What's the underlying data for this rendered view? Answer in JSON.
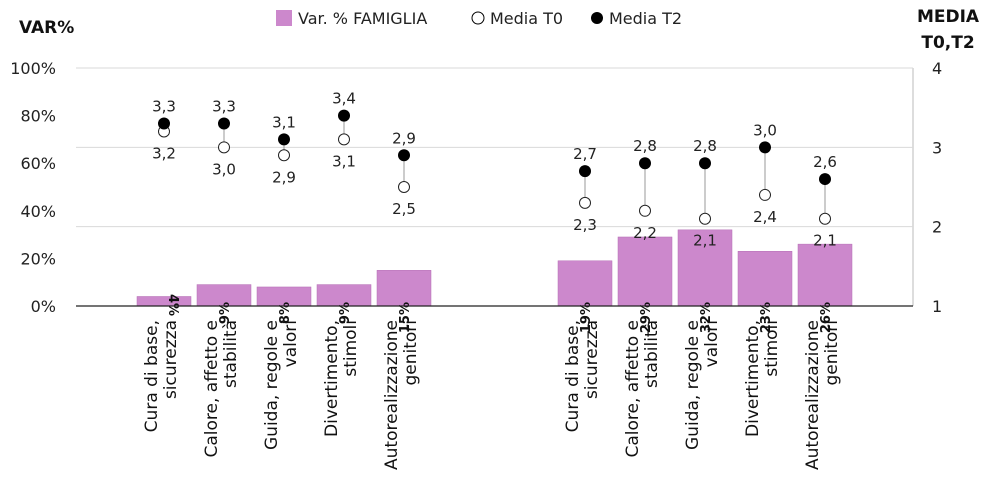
{
  "chart_data": {
    "type": "bar",
    "y_left_title": "VAR%",
    "y_right_title_line1": "MEDIA",
    "y_right_title_line2": "T0,T2",
    "ylim_left": [
      0,
      100
    ],
    "ylim_right": [
      1,
      4
    ],
    "left_ticks": [
      "100%",
      "80%",
      "60%",
      "40%",
      "20%",
      "0%"
    ],
    "right_ticks": [
      "4",
      "3",
      "2",
      "1"
    ],
    "legend": {
      "bar": "Var. % FAMIGLIA",
      "open": "Media T0",
      "filled": "Media T2"
    },
    "categories": [
      [
        "Cura di base,",
        "sicurezza"
      ],
      [
        "Calore, affetto e",
        "stabilità"
      ],
      [
        "Guida, regole e",
        "valori"
      ],
      [
        "Divertimento,",
        "stimoli"
      ],
      [
        "Autorealizzazione",
        "genitori"
      ],
      [
        "Cura di base,",
        "sicurezza"
      ],
      [
        "Calore, affetto e",
        "stabilità"
      ],
      [
        "Guida, regole e",
        "valori"
      ],
      [
        "Divertimento,",
        "stimoli"
      ],
      [
        "Autorealizzazione",
        "genitori"
      ]
    ],
    "series": [
      {
        "name": "Var. % FAMIGLIA",
        "values": [
          4,
          9,
          8,
          9,
          15,
          19,
          29,
          32,
          23,
          26
        ],
        "labels": [
          "4%",
          "9%",
          "8%",
          "9%",
          "15%",
          "19%",
          "29%",
          "32%",
          "23%",
          "26%"
        ]
      },
      {
        "name": "Media T0",
        "values": [
          3.2,
          3.0,
          2.9,
          3.1,
          2.5,
          2.3,
          2.2,
          2.1,
          2.4,
          2.1
        ],
        "labels": [
          "3,2",
          "3,0",
          "2,9",
          "3,1",
          "2,5",
          "2,3",
          "2,2",
          "2,1",
          "2,4",
          "2,1"
        ]
      },
      {
        "name": "Media T2",
        "values": [
          3.3,
          3.3,
          3.1,
          3.4,
          2.9,
          2.7,
          2.8,
          2.8,
          3.0,
          2.6
        ],
        "labels": [
          "3,3",
          "3,3",
          "3,1",
          "3,4",
          "2,9",
          "2,7",
          "2,8",
          "2,8",
          "3,0",
          "2,6"
        ]
      }
    ],
    "colors": {
      "bar": "#cc88cc",
      "bar_border": "#b56fb5",
      "marker": "#000000",
      "grid": "#d9d9d9"
    }
  }
}
